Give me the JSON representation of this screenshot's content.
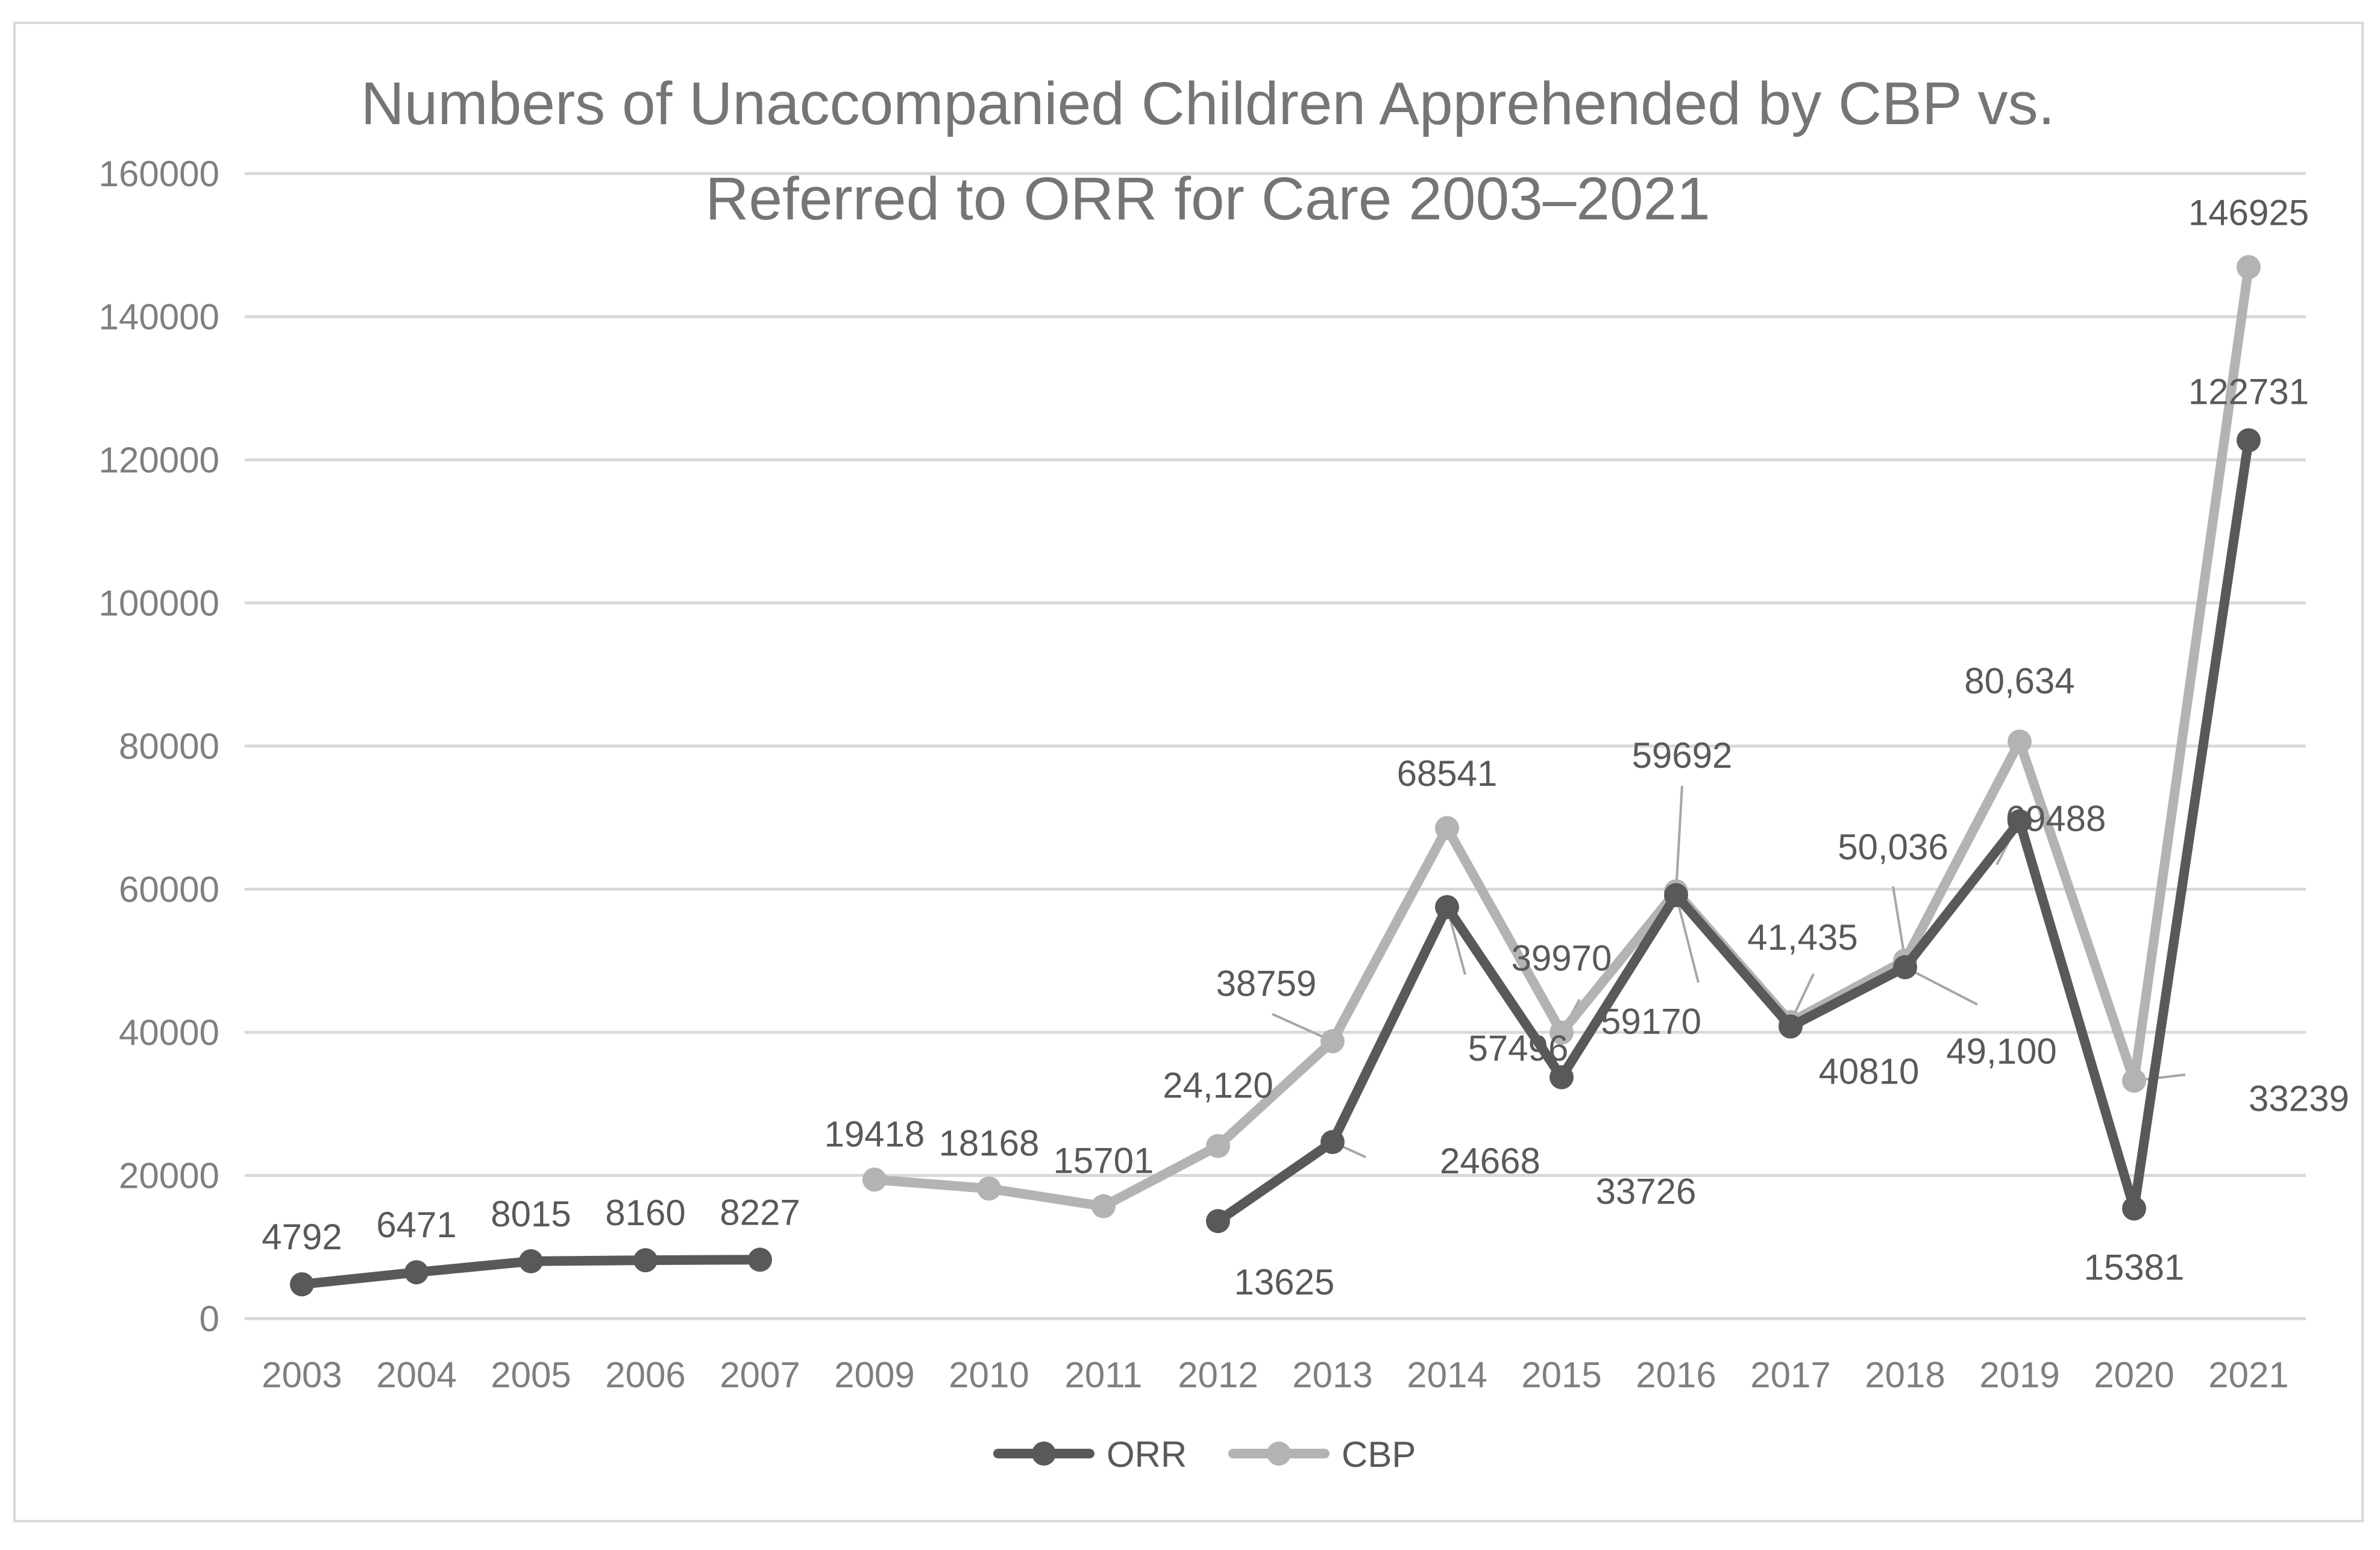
{
  "chart_data": {
    "type": "line",
    "title": "Numbers of Unaccompanied Children Apprehended by CBP vs. Referred to ORR for Care 2003–2021",
    "title_lines": [
      "Numbers of Unaccompanied Children Apprehended by CBP vs.",
      "Referred to ORR for Care 2003–2021"
    ],
    "xlabel": "",
    "ylabel": "",
    "ylim": [
      0,
      160000
    ],
    "yticks": [
      0,
      20000,
      40000,
      60000,
      80000,
      100000,
      120000,
      140000,
      160000
    ],
    "ytick_labels": [
      "0",
      "20000",
      "40000",
      "60000",
      "80000",
      "100000",
      "120000",
      "140000",
      "160000"
    ],
    "grid": true,
    "legend_position": "bottom",
    "categories": [
      "2003",
      "2004",
      "2005",
      "2006",
      "2007",
      "2009",
      "2010",
      "2011",
      "2012",
      "2013",
      "2014",
      "2015",
      "2016",
      "2017",
      "2018",
      "2019",
      "2020",
      "2021"
    ],
    "series": [
      {
        "name": "ORR",
        "color": "#595959",
        "values": [
          4792,
          6471,
          8015,
          8160,
          8227,
          null,
          null,
          null,
          13625,
          24668,
          57496,
          33726,
          59170,
          40810,
          49100,
          69488,
          15381,
          122731
        ],
        "labels": [
          "4792",
          "6471",
          "8015",
          "8160",
          "8227",
          null,
          null,
          null,
          "13625",
          "24668",
          "57496",
          "33726",
          "59170",
          "40810",
          "49,100",
          "69488",
          "15381",
          "122731"
        ]
      },
      {
        "name": "CBP",
        "color": "#b3b3b3",
        "values": [
          null,
          null,
          null,
          null,
          null,
          19418,
          18168,
          15701,
          24120,
          38759,
          68541,
          39970,
          59692,
          41435,
          50036,
          80634,
          33239,
          146925
        ],
        "labels": [
          null,
          null,
          null,
          null,
          null,
          "19418",
          "18168",
          "15701",
          "24,120",
          "38759",
          "68541",
          "39970",
          "59692",
          "41,435",
          "50,036",
          "80,634",
          "33239",
          "146925"
        ]
      }
    ]
  }
}
